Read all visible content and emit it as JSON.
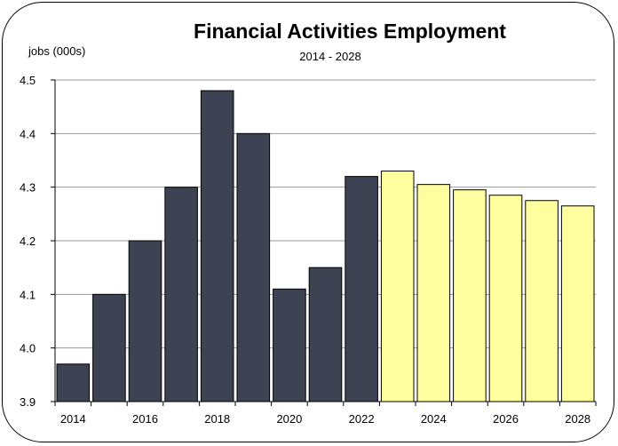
{
  "chart_data": {
    "type": "bar",
    "title": "Financial Activities Employment",
    "subtitle": "2014 - 2028",
    "ylabel": "jobs (000s)",
    "xlabel": "",
    "ylim": [
      3.9,
      4.5
    ],
    "y_ticks": [
      "3.9",
      "4.0",
      "4.1",
      "4.2",
      "4.3",
      "4.4",
      "4.5"
    ],
    "x_tick_labels": [
      "2014",
      "2016",
      "2018",
      "2020",
      "2022",
      "2024",
      "2026",
      "2028"
    ],
    "grid": true,
    "categories": [
      "2014",
      "2015",
      "2016",
      "2017",
      "2018",
      "2019",
      "2020",
      "2021",
      "2022",
      "2023",
      "2024",
      "2025",
      "2026",
      "2027",
      "2028"
    ],
    "series": [
      {
        "values": [
          3.97,
          4.1,
          4.2,
          4.3,
          4.48,
          4.4,
          4.11,
          4.15,
          4.32,
          4.33,
          4.305,
          4.295,
          4.285,
          4.275,
          4.265
        ],
        "colors": [
          "#3d4352",
          "#3d4352",
          "#3d4352",
          "#3d4352",
          "#3d4352",
          "#3d4352",
          "#3d4352",
          "#3d4352",
          "#3d4352",
          "#ffffa0",
          "#ffffa0",
          "#ffffa0",
          "#ffffa0",
          "#ffffa0",
          "#ffffa0"
        ]
      }
    ]
  }
}
